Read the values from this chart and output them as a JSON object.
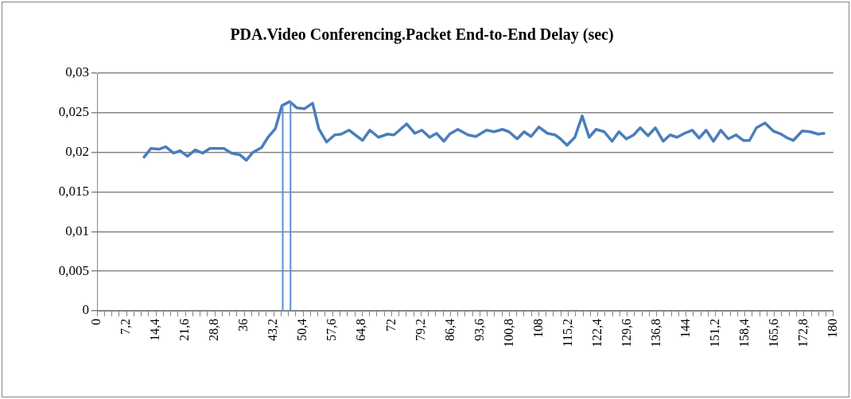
{
  "chart_data": {
    "type": "line",
    "title": "PDA.Video Conferencing.Packet End-to-End Delay (sec)",
    "x": [
      11.5,
      13.2,
      15.2,
      16.8,
      18.7,
      20.3,
      22.1,
      24.0,
      25.8,
      27.6,
      31.0,
      32.9,
      34.9,
      36.5,
      38.1,
      40.2,
      41.8,
      43.6,
      45.2,
      47.1,
      48.9,
      50.7,
      52.7,
      54.2,
      56.1,
      58.1,
      59.7,
      61.6,
      64.9,
      66.7,
      68.8,
      71.0,
      72.6,
      75.7,
      77.7,
      79.4,
      81.3,
      83.0,
      84.8,
      86.2,
      88.2,
      90.7,
      92.6,
      95.2,
      97.1,
      99.1,
      100.7,
      102.7,
      104.4,
      106.1,
      108.0,
      110.1,
      112.0,
      113.3,
      114.9,
      116.8,
      118.6,
      120.3,
      122.0,
      124.0,
      125.9,
      127.6,
      129.4,
      131.2,
      132.8,
      134.7,
      136.5,
      138.4,
      140.1,
      141.8,
      143.6,
      145.5,
      147.2,
      148.9,
      150.7,
      152.5,
      154.3,
      156.2,
      158.0,
      159.5,
      161.2,
      163.3,
      165.3,
      167.2,
      168.8,
      170.2,
      172.4,
      174.3,
      176.3,
      177.7
    ],
    "values": [
      0.0194,
      0.0205,
      0.0204,
      0.0207,
      0.0199,
      0.0202,
      0.0195,
      0.0203,
      0.0199,
      0.0205,
      0.0205,
      0.0199,
      0.0197,
      0.019,
      0.02,
      0.0206,
      0.0219,
      0.023,
      0.0259,
      0.0264,
      0.0256,
      0.0255,
      0.0262,
      0.023,
      0.0213,
      0.0222,
      0.0223,
      0.0228,
      0.0215,
      0.0228,
      0.0219,
      0.0223,
      0.0222,
      0.0236,
      0.0224,
      0.0228,
      0.0219,
      0.0224,
      0.0214,
      0.0223,
      0.0229,
      0.0222,
      0.022,
      0.0228,
      0.0226,
      0.0229,
      0.0226,
      0.0217,
      0.0226,
      0.022,
      0.0232,
      0.0224,
      0.0222,
      0.0217,
      0.0209,
      0.0219,
      0.0246,
      0.0219,
      0.0229,
      0.0226,
      0.0214,
      0.0226,
      0.0217,
      0.0222,
      0.0231,
      0.0221,
      0.0231,
      0.0214,
      0.0222,
      0.0219,
      0.0224,
      0.0228,
      0.0218,
      0.0228,
      0.0214,
      0.0228,
      0.0217,
      0.0222,
      0.0215,
      0.0215,
      0.0231,
      0.0237,
      0.0227,
      0.0223,
      0.0218,
      0.0215,
      0.0227,
      0.0226,
      0.0223,
      0.0224
    ],
    "color": "#4a7ebb",
    "ref_lines": [
      {
        "axis": "x",
        "value": 45.4,
        "color": "#5b8fd6"
      },
      {
        "axis": "x",
        "value": 47.3,
        "color": "#5b8fd6"
      }
    ],
    "xlim": [
      0,
      180
    ],
    "xticks": [
      0,
      {
        "value": 1.8,
        "label": null
      },
      {
        "value": 3.6,
        "label": null
      },
      {
        "value": 5.4,
        "label": null
      },
      {
        "value": 7.2,
        "label": "7,2"
      },
      {
        "value": 9,
        "label": null
      },
      {
        "value": 10.8,
        "label": null
      },
      {
        "value": 12.6,
        "label": null
      },
      {
        "value": 14.4,
        "label": "14,4"
      },
      {
        "value": 16.2,
        "label": null
      },
      {
        "value": 18,
        "label": null
      },
      {
        "value": 19.8,
        "label": null
      },
      {
        "value": 21.6,
        "label": "21,6"
      },
      {
        "value": 23.4,
        "label": null
      },
      {
        "value": 25.2,
        "label": null
      },
      {
        "value": 27,
        "label": null
      },
      {
        "value": 28.8,
        "label": "28,8"
      },
      {
        "value": 30.6,
        "label": null
      },
      {
        "value": 32.4,
        "label": null
      },
      {
        "value": 34.2,
        "label": null
      },
      36,
      {
        "value": 37.8,
        "label": null
      },
      {
        "value": 39.6,
        "label": null
      },
      {
        "value": 41.4,
        "label": null
      },
      {
        "value": 43.2,
        "label": "43,2"
      },
      {
        "value": 45,
        "label": null
      },
      {
        "value": 46.8,
        "label": null
      },
      {
        "value": 48.6,
        "label": null
      },
      {
        "value": 50.4,
        "label": "50,4"
      },
      {
        "value": 52.2,
        "label": null
      },
      {
        "value": 54,
        "label": null
      },
      {
        "value": 55.8,
        "label": null
      },
      {
        "value": 57.6,
        "label": "57,6"
      },
      {
        "value": 59.4,
        "label": null
      },
      {
        "value": 61.2,
        "label": null
      },
      {
        "value": 63,
        "label": null
      },
      {
        "value": 64.8,
        "label": "64,8"
      },
      {
        "value": 66.6,
        "label": null
      },
      {
        "value": 68.4,
        "label": null
      },
      {
        "value": 70.2,
        "label": null
      },
      72,
      {
        "value": 73.8,
        "label": null
      },
      {
        "value": 75.6,
        "label": null
      },
      {
        "value": 77.4,
        "label": null
      },
      {
        "value": 79.2,
        "label": "79,2"
      },
      {
        "value": 81,
        "label": null
      },
      {
        "value": 82.8,
        "label": null
      },
      {
        "value": 84.6,
        "label": null
      },
      {
        "value": 86.4,
        "label": "86,4"
      },
      {
        "value": 88.2,
        "label": null
      },
      {
        "value": 90,
        "label": null
      },
      {
        "value": 91.8,
        "label": null
      },
      {
        "value": 93.6,
        "label": "93,6"
      },
      {
        "value": 95.4,
        "label": null
      },
      {
        "value": 97.2,
        "label": null
      },
      {
        "value": 99,
        "label": null
      },
      {
        "value": 100.8,
        "label": "100,8"
      },
      {
        "value": 102.6,
        "label": null
      },
      {
        "value": 104.4,
        "label": null
      },
      {
        "value": 106.2,
        "label": null
      },
      108,
      {
        "value": 109.8,
        "label": null
      },
      {
        "value": 111.6,
        "label": null
      },
      {
        "value": 113.4,
        "label": null
      },
      {
        "value": 115.2,
        "label": "115,2"
      },
      {
        "value": 117,
        "label": null
      },
      {
        "value": 118.8,
        "label": null
      },
      {
        "value": 120.6,
        "label": null
      },
      {
        "value": 122.4,
        "label": "122,4"
      },
      {
        "value": 124.2,
        "label": null
      },
      {
        "value": 126,
        "label": null
      },
      {
        "value": 127.8,
        "label": null
      },
      {
        "value": 129.6,
        "label": "129,6"
      },
      {
        "value": 131.4,
        "label": null
      },
      {
        "value": 133.2,
        "label": null
      },
      {
        "value": 135,
        "label": null
      },
      {
        "value": 136.8,
        "label": "136,8"
      },
      {
        "value": 138.6,
        "label": null
      },
      {
        "value": 140.4,
        "label": null
      },
      {
        "value": 142.2,
        "label": null
      },
      144,
      {
        "value": 145.8,
        "label": null
      },
      {
        "value": 147.6,
        "label": null
      },
      {
        "value": 149.4,
        "label": null
      },
      {
        "value": 151.2,
        "label": "151,2"
      },
      {
        "value": 153,
        "label": null
      },
      {
        "value": 154.8,
        "label": null
      },
      {
        "value": 156.6,
        "label": null
      },
      {
        "value": 158.4,
        "label": "158,4"
      },
      {
        "value": 160.2,
        "label": null
      },
      {
        "value": 162,
        "label": null
      },
      {
        "value": 163.8,
        "label": null
      },
      {
        "value": 165.6,
        "label": "165,6"
      },
      {
        "value": 167.4,
        "label": null
      },
      {
        "value": 169.2,
        "label": null
      },
      {
        "value": 171,
        "label": null
      },
      {
        "value": 172.8,
        "label": "172,8"
      },
      {
        "value": 174.6,
        "label": null
      },
      {
        "value": 176.4,
        "label": null
      },
      {
        "value": 178.2,
        "label": null
      },
      180
    ],
    "ylim": [
      0,
      0.03
    ],
    "yticks": [
      0,
      {
        "value": 0.005,
        "label": "0,005"
      },
      {
        "value": 0.01,
        "label": "0,01"
      },
      {
        "value": 0.015,
        "label": "0,015"
      },
      {
        "value": 0.02,
        "label": "0,02"
      },
      {
        "value": 0.025,
        "label": "0,025"
      },
      {
        "value": 0.03,
        "label": "0,03"
      }
    ],
    "grid": "y"
  }
}
